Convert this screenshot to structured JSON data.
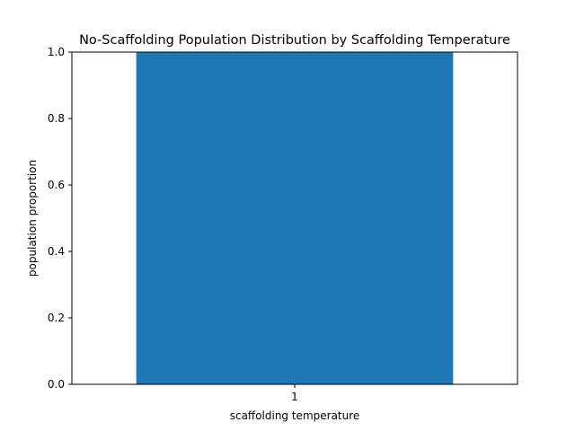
{
  "chart_data": {
    "type": "bar",
    "title": "No-Scaffolding Population Distribution by Scaffolding Temperature",
    "xlabel": "scaffolding temperature",
    "ylabel": "population proportion",
    "categories": [
      "1"
    ],
    "values": [
      1.0
    ],
    "ylim": [
      0,
      1.0
    ],
    "yticks": [
      "0.0",
      "0.2",
      "0.4",
      "0.6",
      "0.8",
      "1.0"
    ],
    "grid": false,
    "bar_color": "#1f77b4"
  }
}
